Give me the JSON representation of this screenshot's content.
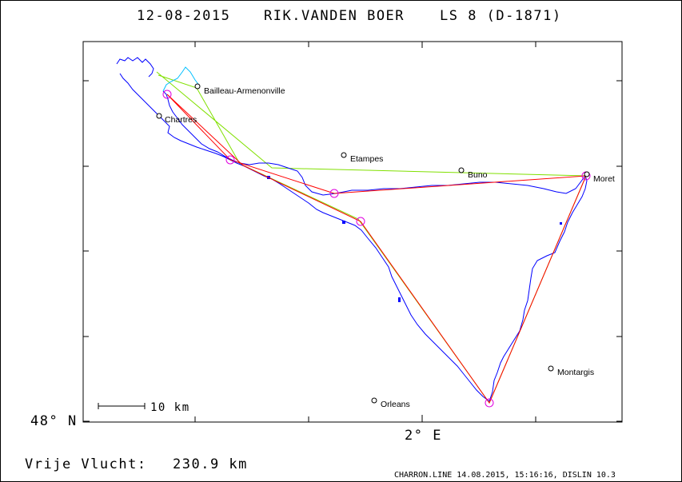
{
  "header": {
    "date": "12-08-2015",
    "pilot": "RIK.VANDEN BOER",
    "glider": "LS 8 (D-1871)"
  },
  "axes": {
    "lat_label": "48° N",
    "lon_label": "2° E"
  },
  "scale_bar": {
    "label": "10 km"
  },
  "footer": {
    "task_label": "Vrije Vlucht:",
    "distance": "230.9 km",
    "program_info": "CHARRON.LINE 14.08.2015, 15:16:16, DISLIN 10.3"
  },
  "places": [
    {
      "name": "Bailleau-Armenonville"
    },
    {
      "name": "Chartres"
    },
    {
      "name": "Etampes"
    },
    {
      "name": "Buno"
    },
    {
      "name": "Moret"
    },
    {
      "name": "Montargis"
    },
    {
      "name": "Orleans"
    }
  ],
  "colors": {
    "track": "#0000ff",
    "track_alt": "#00bfff",
    "optimized": "#ff0000",
    "declared": "#80e000",
    "turnpoint": "#e000e0",
    "frame": "#000000"
  }
}
